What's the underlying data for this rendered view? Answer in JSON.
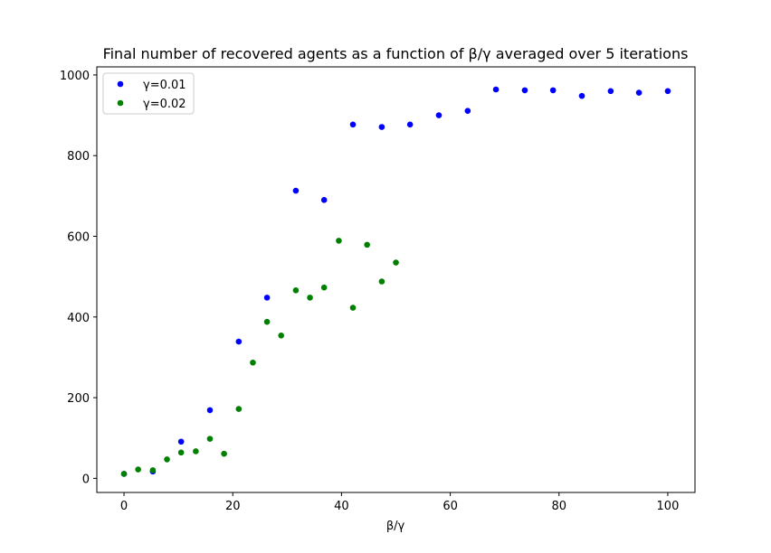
{
  "chart_data": {
    "type": "scatter",
    "title": "Final number of recovered agents as a function of β/γ averaged over 5 iterations",
    "xlabel": "β/γ",
    "ylabel": "",
    "xlim": [
      -5,
      105
    ],
    "ylim": [
      -35,
      1020
    ],
    "xticks": [
      0,
      20,
      40,
      60,
      80,
      100
    ],
    "yticks": [
      0,
      200,
      400,
      600,
      800,
      1000
    ],
    "grid": false,
    "legend_position": "top-left",
    "series": [
      {
        "name": "γ=0.01",
        "color": "#0000ff",
        "points": [
          [
            0,
            11
          ],
          [
            5.3,
            17
          ],
          [
            10.5,
            91
          ],
          [
            15.8,
            169
          ],
          [
            21.1,
            339
          ],
          [
            26.3,
            448
          ],
          [
            31.6,
            713
          ],
          [
            36.8,
            690
          ],
          [
            42.1,
            877
          ],
          [
            47.4,
            871
          ],
          [
            52.6,
            877
          ],
          [
            57.9,
            900
          ],
          [
            63.2,
            911
          ],
          [
            68.4,
            964
          ],
          [
            73.7,
            962
          ],
          [
            78.9,
            962
          ],
          [
            84.2,
            948
          ],
          [
            89.5,
            960
          ],
          [
            94.7,
            956
          ],
          [
            100,
            960
          ]
        ]
      },
      {
        "name": "γ=0.02",
        "color": "#008000",
        "points": [
          [
            0,
            11
          ],
          [
            2.6,
            22
          ],
          [
            5.3,
            20
          ],
          [
            7.9,
            47
          ],
          [
            10.5,
            64
          ],
          [
            13.2,
            67
          ],
          [
            15.8,
            98
          ],
          [
            18.4,
            61
          ],
          [
            21.1,
            172
          ],
          [
            23.7,
            287
          ],
          [
            26.3,
            388
          ],
          [
            28.9,
            354
          ],
          [
            31.6,
            466
          ],
          [
            34.2,
            448
          ],
          [
            36.8,
            473
          ],
          [
            39.5,
            589
          ],
          [
            42.1,
            423
          ],
          [
            44.7,
            579
          ],
          [
            47.4,
            488
          ],
          [
            50,
            535
          ]
        ]
      }
    ]
  }
}
